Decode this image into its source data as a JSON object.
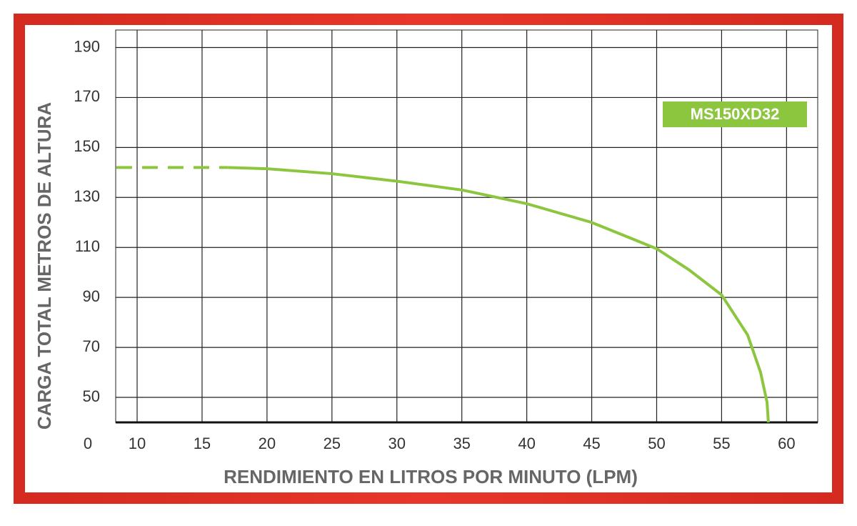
{
  "chart_data": {
    "type": "line",
    "x_label": "RENDIMIENTO EN LITROS POR MINUTO (LPM)",
    "y_label": "CARGA TOTAL METROS DE ALTURA",
    "origin_label": "0",
    "xlim": [
      8.35,
      62.4
    ],
    "ylim": [
      40,
      197
    ],
    "xticks": [
      10,
      15,
      20,
      25,
      30,
      35,
      40,
      45,
      50,
      55,
      60
    ],
    "yticks": [
      50,
      70,
      90,
      110,
      130,
      150,
      170,
      190
    ],
    "grid": true,
    "legend": "upper right",
    "series": [
      {
        "name": "MS150XD32",
        "color": "#8cc63f",
        "x": [
          17,
          20,
          25,
          30,
          35,
          40,
          45,
          50,
          52.5,
          55,
          57,
          58,
          58.5,
          58.6
        ],
        "values": [
          142,
          141.5,
          139.5,
          136.5,
          133,
          127.5,
          120,
          109.5,
          101,
          91,
          75,
          60,
          48,
          40
        ]
      },
      {
        "color": "#8cc63f",
        "style": "dashed",
        "x": [
          8.4,
          17
        ],
        "values": [
          142,
          142
        ]
      }
    ]
  }
}
